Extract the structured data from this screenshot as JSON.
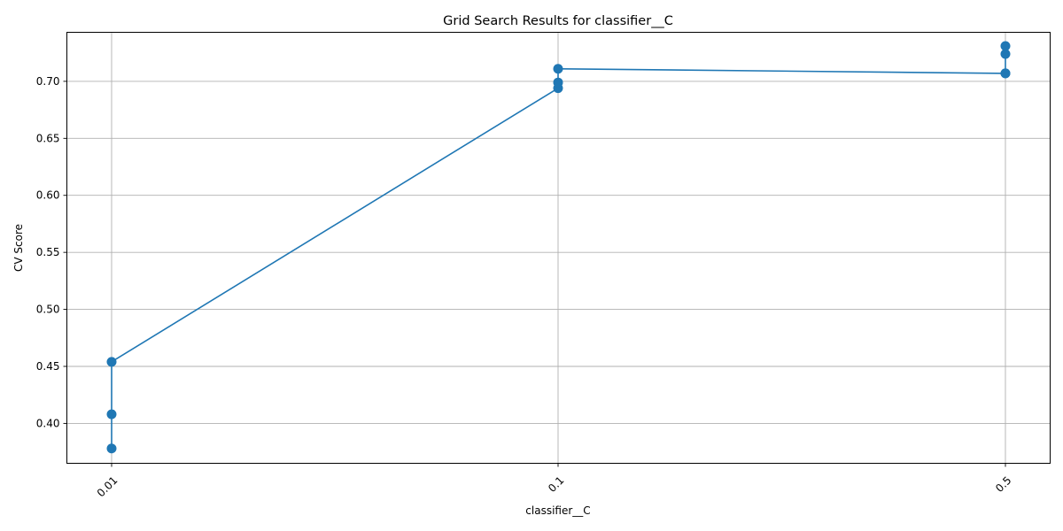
{
  "chart_data": {
    "type": "line",
    "title": "Grid Search Results for classifier__C",
    "xlabel": "classifier__C",
    "ylabel": "CV Score",
    "categories": [
      "0.01",
      "0.1",
      "0.5"
    ],
    "points": [
      {
        "x": "0.01",
        "y": 0.378
      },
      {
        "x": "0.01",
        "y": 0.408
      },
      {
        "x": "0.01",
        "y": 0.454
      },
      {
        "x": "0.1",
        "y": 0.694
      },
      {
        "x": "0.1",
        "y": 0.699
      },
      {
        "x": "0.1",
        "y": 0.711
      },
      {
        "x": "0.5",
        "y": 0.707
      },
      {
        "x": "0.5",
        "y": 0.724
      },
      {
        "x": "0.5",
        "y": 0.731
      },
      {
        "x": "0.5",
        "y": 0.707
      }
    ],
    "yticks": [
      "0.40",
      "0.45",
      "0.50",
      "0.55",
      "0.60",
      "0.65",
      "0.70"
    ],
    "ylim": [
      0.365,
      0.743
    ],
    "grid": true,
    "legend": false,
    "color": "#1f77b4"
  }
}
